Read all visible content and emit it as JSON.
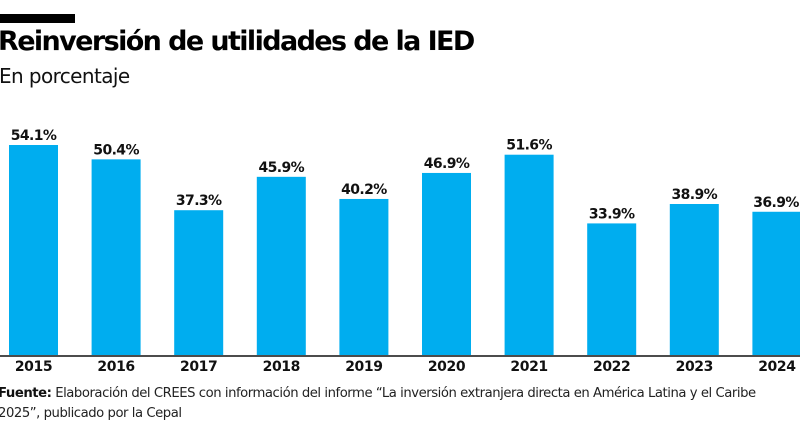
{
  "header": {
    "title": "Reinversión de utilidades de la IED",
    "subtitle": "En porcentaje"
  },
  "chart_data": {
    "type": "bar",
    "title": "Reinversión de utilidades de la IED",
    "subtitle": "En porcentaje",
    "xlabel": "",
    "ylabel": "",
    "categories": [
      "2015",
      "2016",
      "2017",
      "2018",
      "2019",
      "2020",
      "2021",
      "2022",
      "2023",
      "2024"
    ],
    "values": [
      54.1,
      50.4,
      37.3,
      45.9,
      40.2,
      46.9,
      51.6,
      33.9,
      38.9,
      36.9
    ],
    "value_labels": [
      "54.1%",
      "50.4%",
      "37.3%",
      "45.9%",
      "40.2%",
      "46.9%",
      "51.6%",
      "33.9%",
      "38.9%",
      "36.9%"
    ],
    "ylim": [
      0,
      54.1
    ],
    "grid": false,
    "legend": "none",
    "bar_color": "#00adef",
    "axis_color": "#111111"
  },
  "footer": {
    "source_label": "Fuente:",
    "source_text": " Elaboración del CREES con información del informe “La inversión extranjera directa en América Latina y el Caribe 2025”, publicado por la Cepal"
  }
}
